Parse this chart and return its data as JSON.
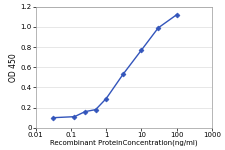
{
  "x": [
    0.0313,
    0.125,
    0.25,
    0.5,
    1.0,
    3.0,
    10.0,
    30.0,
    100.0
  ],
  "y": [
    0.1,
    0.11,
    0.16,
    0.18,
    0.29,
    0.53,
    0.77,
    0.99,
    1.12
  ],
  "line_color": "#3355bb",
  "marker_color": "#3355bb",
  "marker": "D",
  "marker_size": 2.5,
  "line_width": 1.0,
  "xlabel": "Recombinant ProteinConcentration(ng/ml)",
  "ylabel": "OD 450",
  "ylim": [
    0,
    1.2
  ],
  "xlim": [
    0.01,
    1000
  ],
  "yticks": [
    0,
    0.2,
    0.4,
    0.6,
    0.8,
    1.0,
    1.2
  ],
  "xticks": [
    0.01,
    0.1,
    1,
    10,
    100,
    1000
  ],
  "xtick_labels": [
    "0.01",
    "0.1",
    "1",
    "10",
    "100",
    "1000"
  ],
  "xlabel_fontsize": 5.0,
  "ylabel_fontsize": 5.5,
  "tick_fontsize": 5.0,
  "background_color": "#ffffff",
  "plot_bg_color": "#ffffff",
  "grid_color": "#dddddd"
}
